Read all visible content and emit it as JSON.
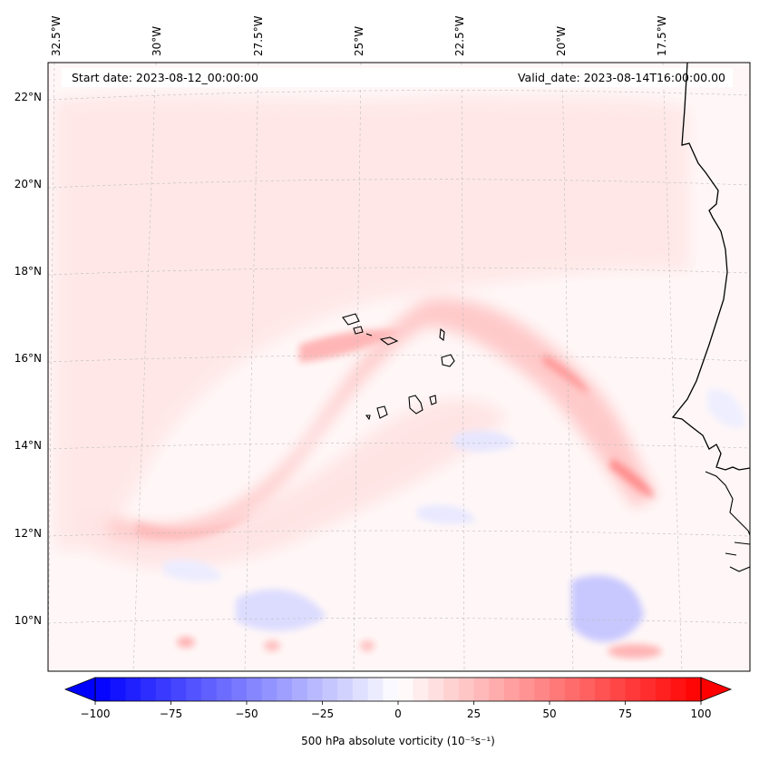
{
  "header": {
    "start_date": "Start date: 2023-08-12_00:00:00",
    "valid_date": "Valid_date: 2023-08-14T16:00:00.00"
  },
  "longitude_labels": [
    "32.5°W",
    "30°W",
    "27.5°W",
    "25°W",
    "22.5°W",
    "20°W",
    "17.5°W"
  ],
  "latitude_labels": [
    "22°N",
    "20°N",
    "18°N",
    "16°N",
    "14°N",
    "12°N",
    "10°N"
  ],
  "colorbar": {
    "ticks": [
      "−100",
      "−75",
      "−50",
      "−25",
      "0",
      "25",
      "50",
      "75",
      "100"
    ],
    "label": "500 hPa absolute vorticity (10⁻⁵s⁻¹)",
    "min": -100,
    "max": 100,
    "step": 5,
    "negative_color": "#0000ff",
    "positive_color": "#ff0000"
  },
  "map": {
    "field": "500 hPa absolute vorticity",
    "colormap": "bwr",
    "coastline_color": "#000000",
    "gridlines": "dashed light gray"
  }
}
